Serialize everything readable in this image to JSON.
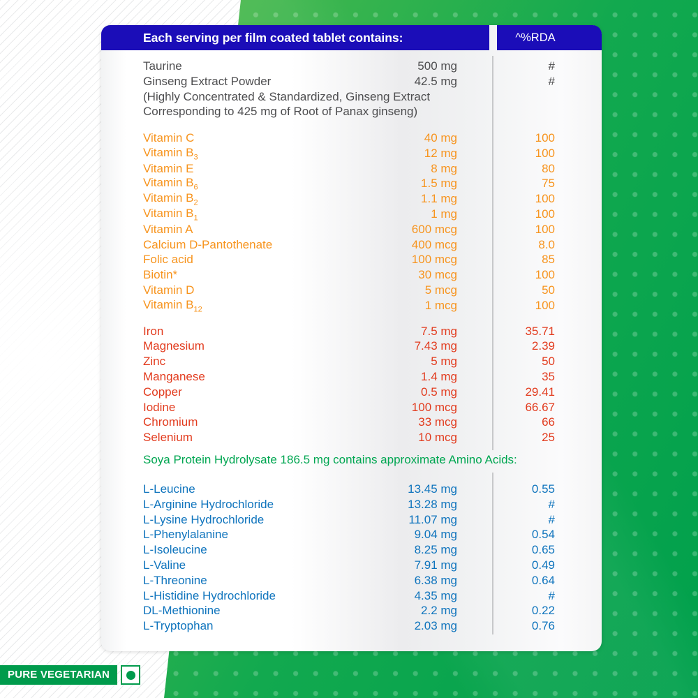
{
  "header": {
    "title": "Each serving per film coated tablet contains:",
    "rda_label": "^%RDA"
  },
  "colors": {
    "header_bg": "#1b0db8",
    "base_text": "#4d4d4f",
    "vitamins": "#f7941e",
    "minerals": "#e23b1e",
    "soya": "#00a651",
    "amino": "#0f74bd",
    "green_dark": "#00a04c",
    "green_light": "#6ec24b",
    "badge_green": "#009b4c",
    "divider": "#c7c8ca"
  },
  "sections": [
    {
      "name": "base",
      "color_key": "base_text",
      "rows": [
        {
          "name": "Taurine",
          "value": "500 mg",
          "rda": "#"
        },
        {
          "name": "Ginseng Extract Powder",
          "value": "42.5 mg",
          "rda": "#"
        }
      ],
      "note": "(Highly Concentrated & Standardized, Ginseng Extract Corresponding to 425 mg of Root of Panax ginseng)"
    },
    {
      "name": "vitamins",
      "color_key": "vitamins",
      "rows": [
        {
          "name": "Vitamin C",
          "value": "40 mg",
          "rda": "100"
        },
        {
          "name": "Vitamin B",
          "sub": "3",
          "value": "12 mg",
          "rda": "100"
        },
        {
          "name": "Vitamin E",
          "value": "8 mg",
          "rda": "80"
        },
        {
          "name": "Vitamin B",
          "sub": "6",
          "value": "1.5 mg",
          "rda": "75"
        },
        {
          "name": "Vitamin B",
          "sub": "2",
          "value": "1.1 mg",
          "rda": "100"
        },
        {
          "name": "Vitamin B",
          "sub": "1",
          "value": "1 mg",
          "rda": "100"
        },
        {
          "name": "Vitamin A",
          "value": "600 mcg",
          "rda": "100"
        },
        {
          "name": "Calcium D-Pantothenate",
          "value": "400 mcg",
          "rda": "8.0"
        },
        {
          "name": "Folic acid",
          "value": "100 mcg",
          "rda": "85"
        },
        {
          "name": "Biotin*",
          "value": "30 mcg",
          "rda": "100"
        },
        {
          "name": "Vitamin D",
          "value": "5 mcg",
          "rda": "50"
        },
        {
          "name": "Vitamin B",
          "sub": "12",
          "value": "1 mcg",
          "rda": "100"
        }
      ]
    },
    {
      "name": "minerals",
      "color_key": "minerals",
      "rows": [
        {
          "name": "Iron",
          "value": "7.5 mg",
          "rda": "35.71"
        },
        {
          "name": "Magnesium",
          "value": "7.43 mg",
          "rda": "2.39"
        },
        {
          "name": "Zinc",
          "value": "5 mg",
          "rda": "50"
        },
        {
          "name": "Manganese",
          "value": "1.4 mg",
          "rda": "35"
        },
        {
          "name": "Copper",
          "value": "0.5 mg",
          "rda": "29.41"
        },
        {
          "name": "Iodine",
          "value": "100 mcg",
          "rda": "66.67"
        },
        {
          "name": "Chromium",
          "value": "33 mcg",
          "rda": "66"
        },
        {
          "name": "Selenium",
          "value": "10 mcg",
          "rda": "25"
        }
      ]
    },
    {
      "name": "amino_acids",
      "color_key": "amino",
      "heading": "Soya Protein Hydrolysate 186.5 mg contains approximate Amino Acids:",
      "heading_color_key": "soya",
      "rows": [
        {
          "name": "L-Leucine",
          "value": "13.45 mg",
          "rda": "0.55"
        },
        {
          "name": "L-Arginine Hydrochloride",
          "value": "13.28 mg",
          "rda": "#"
        },
        {
          "name": "L-Lysine Hydrochloride",
          "value": "11.07 mg",
          "rda": "#"
        },
        {
          "name": "L-Phenylalanine",
          "value": "9.04 mg",
          "rda": "0.54"
        },
        {
          "name": "L-Isoleucine",
          "value": "8.25 mg",
          "rda": "0.65"
        },
        {
          "name": "L-Valine",
          "value": "7.91 mg",
          "rda": "0.49"
        },
        {
          "name": "L-Threonine",
          "value": "6.38 mg",
          "rda": "0.64"
        },
        {
          "name": "L-Histidine Hydrochloride",
          "value": "4.35 mg",
          "rda": "#"
        },
        {
          "name": "DL-Methionine",
          "value": "2.2 mg",
          "rda": "0.22"
        },
        {
          "name": "L-Tryptophan",
          "value": "2.03 mg",
          "rda": "0.76"
        }
      ]
    }
  ],
  "badge": {
    "label": "PURE VEGETARIAN"
  }
}
